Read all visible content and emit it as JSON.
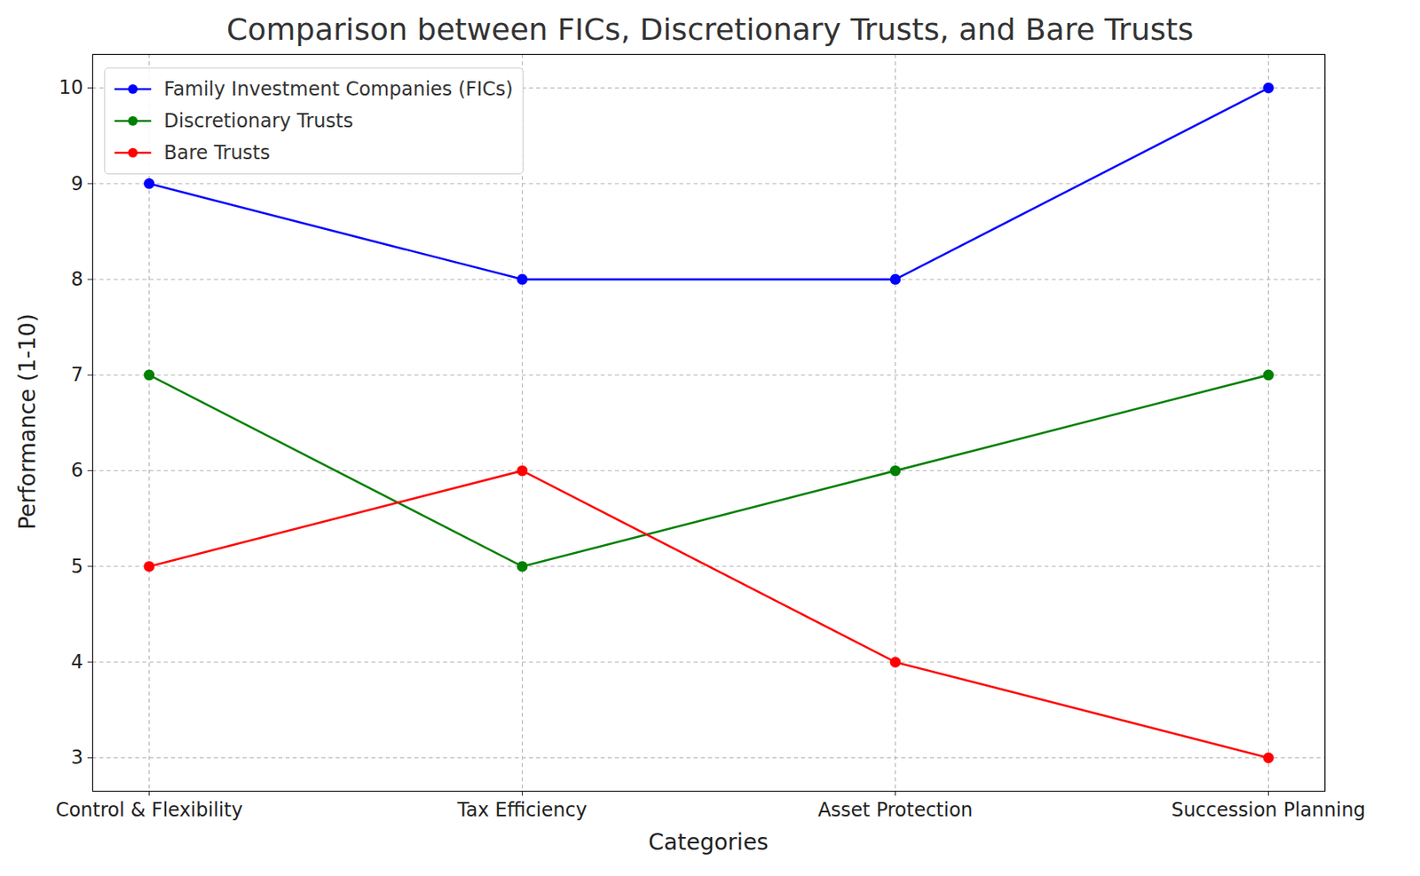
{
  "chart_data": {
    "type": "line",
    "title": "Comparison between FICs, Discretionary Trusts, and Bare Trusts",
    "x_label": "Categories",
    "y_label": "Performance (1-10)",
    "categories": [
      "Control & Flexibility",
      "Tax Efficiency",
      "Asset Protection",
      "Succession Planning"
    ],
    "series": [
      {
        "name": "Family Investment Companies (FICs)",
        "color": "#0000ff",
        "marker": "o",
        "values": [
          9,
          8,
          8,
          10
        ]
      },
      {
        "name": "Discretionary Trusts",
        "color": "#008000",
        "marker": "o",
        "values": [
          7,
          5,
          6,
          7
        ]
      },
      {
        "name": "Bare Trusts",
        "color": "#ff0000",
        "marker": "o",
        "values": [
          5,
          6,
          4,
          3
        ]
      }
    ],
    "ylim": [
      2.65,
      10.35
    ],
    "yticks": [
      3,
      4,
      5,
      6,
      7,
      8,
      9,
      10
    ],
    "grid": true,
    "legend": "upper left"
  }
}
